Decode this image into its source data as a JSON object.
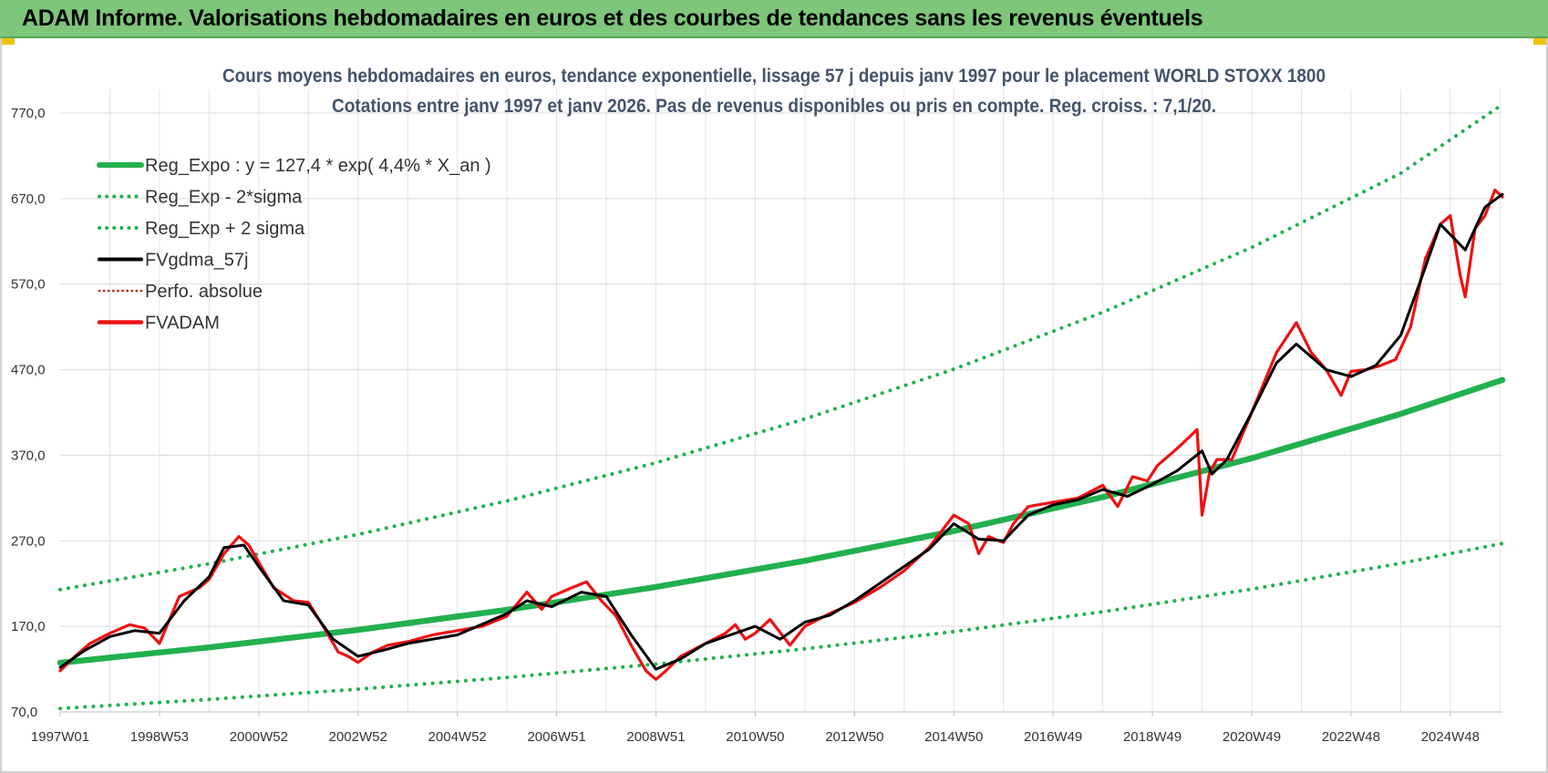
{
  "banner": {
    "title": "ADAM Informe. Valorisations hebdomadaires en euros et des courbes de tendances sans les revenus éventuels"
  },
  "colors": {
    "banner_bg": "#7dc67a",
    "trend": "#22b04f",
    "fv": "#ee1111",
    "gdma": "#000000",
    "title": "#44546a"
  },
  "chart_data": {
    "type": "line",
    "title": "Cours moyens hebdomadaires en euros, tendance exponentielle, lissage 57 j depuis janv 1997 pour le placement WORLD STOXX 1800",
    "subtitle": "Cotations entre janv 1997 et janv 2026. Pas de revenus disponibles ou pris en compte. Reg. croiss. : 7,1/20.",
    "ylim": [
      70,
      770
    ],
    "xlim": [
      1997.0,
      2026.05
    ],
    "y_ticks": [
      70,
      170,
      270,
      370,
      470,
      570,
      670,
      770
    ],
    "y_tick_labels": [
      "70,0",
      "170,0",
      "270,0",
      "370,0",
      "470,0",
      "570,0",
      "670,0",
      "770,0"
    ],
    "x_tick_labels": [
      "1997W01",
      "1998W53",
      "2000W52",
      "2002W52",
      "2004W52",
      "2006W51",
      "2008W51",
      "2010W50",
      "2012W50",
      "2014W50",
      "2016W49",
      "2018W49",
      "2020W49",
      "2022W48",
      "2024W48"
    ],
    "x_tick_years": [
      1997.0,
      1999.0,
      2001.0,
      2003.0,
      2005.0,
      2007.0,
      2009.0,
      2011.0,
      2013.0,
      2015.0,
      2017.0,
      2019.0,
      2021.0,
      2023.0,
      2025.0
    ],
    "grid": true,
    "legend_position": "top-left",
    "legend": [
      {
        "key": "reg_expo",
        "label": "Reg_Expo : y = 127,4 * exp( 4,4% *  X_an )"
      },
      {
        "key": "reg_minus",
        "label": "Reg_Exp - 2*sigma"
      },
      {
        "key": "reg_plus",
        "label": "Reg_Exp + 2 sigma"
      },
      {
        "key": "fvgdma",
        "label": "FVgdma_57j"
      },
      {
        "key": "perfo",
        "label": "Perfo. absolue"
      },
      {
        "key": "fvadam",
        "label": "FVADAM"
      }
    ],
    "series": [
      {
        "name": "Reg_Expo : y = 127,4 * exp( 4,4% *  X_an )",
        "x": [
          1997.0,
          2000.0,
          2003.0,
          2006.0,
          2009.0,
          2012.0,
          2015.0,
          2018.0,
          2021.0,
          2024.0,
          2026.05
        ],
        "y": [
          127.4,
          145.4,
          165.9,
          189.3,
          216.1,
          246.6,
          281.4,
          321.1,
          366.5,
          418.3,
          458.0
        ]
      },
      {
        "name": "Reg_Exp - 2*sigma",
        "x": [
          1997.0,
          2000.0,
          2003.0,
          2006.0,
          2009.0,
          2012.0,
          2015.0,
          2018.0,
          2021.0,
          2024.0,
          2026.05
        ],
        "y": [
          74,
          84.6,
          96.6,
          110.3,
          125.9,
          143.7,
          163.9,
          187.1,
          213.5,
          243.7,
          266.9
        ]
      },
      {
        "name": "Reg_Exp + 2 sigma",
        "x": [
          1997.0,
          2000.0,
          2003.0,
          2006.0,
          2009.0,
          2012.0,
          2015.0,
          2018.0,
          2021.0,
          2024.0,
          2026.05
        ],
        "y": [
          213,
          243.1,
          277.4,
          316.6,
          361.3,
          412.4,
          470.6,
          537.1,
          613.0,
          699.6,
          780.0
        ]
      },
      {
        "name": "FVgdma_57j",
        "x": [
          1997.0,
          1997.5,
          1998.0,
          1998.5,
          1999.0,
          1999.5,
          2000.0,
          2000.3,
          2000.7,
          2001.0,
          2001.5,
          2002.0,
          2002.5,
          2003.0,
          2003.5,
          2004.0,
          2005.0,
          2006.0,
          2006.4,
          2006.9,
          2007.5,
          2008.0,
          2008.5,
          2009.0,
          2009.5,
          2010.0,
          2010.5,
          2011.0,
          2011.5,
          2012.0,
          2012.5,
          2013.0,
          2013.5,
          2014.0,
          2014.5,
          2015.0,
          2015.5,
          2016.0,
          2016.5,
          2017.0,
          2017.5,
          2018.0,
          2018.5,
          2019.0,
          2019.5,
          2020.0,
          2020.2,
          2020.5,
          2021.0,
          2021.5,
          2021.9,
          2022.5,
          2023.0,
          2023.5,
          2024.0,
          2024.5,
          2024.8,
          2025.3,
          2025.7,
          2026.05
        ],
        "y": [
          122,
          142,
          158,
          165,
          162,
          200,
          228,
          262,
          265,
          240,
          200,
          195,
          155,
          135,
          142,
          150,
          160,
          185,
          200,
          193,
          210,
          205,
          160,
          120,
          132,
          150,
          160,
          170,
          155,
          175,
          183,
          200,
          220,
          240,
          260,
          290,
          272,
          270,
          300,
          312,
          318,
          330,
          322,
          336,
          352,
          375,
          348,
          365,
          420,
          478,
          500,
          470,
          462,
          475,
          510,
          590,
          640,
          610,
          660,
          675
        ]
      },
      {
        "name": "FVADAM",
        "x": [
          1997.0,
          1997.3,
          1997.6,
          1998.0,
          1998.4,
          1998.7,
          1999.0,
          1999.4,
          1999.8,
          2000.0,
          2000.3,
          2000.6,
          2000.8,
          2001.0,
          2001.3,
          2001.7,
          2002.0,
          2002.3,
          2002.6,
          2002.8,
          2003.0,
          2003.3,
          2003.6,
          2004.0,
          2004.5,
          2005.0,
          2005.5,
          2006.0,
          2006.4,
          2006.7,
          2006.9,
          2007.3,
          2007.6,
          2007.9,
          2008.2,
          2008.5,
          2008.8,
          2009.0,
          2009.2,
          2009.5,
          2010.0,
          2010.4,
          2010.6,
          2010.8,
          2011.0,
          2011.3,
          2011.7,
          2012.0,
          2012.5,
          2013.0,
          2013.5,
          2014.0,
          2014.5,
          2015.0,
          2015.3,
          2015.5,
          2015.7,
          2016.0,
          2016.2,
          2016.5,
          2017.0,
          2017.5,
          2018.0,
          2018.3,
          2018.6,
          2018.9,
          2019.1,
          2019.5,
          2019.9,
          2020.0,
          2020.15,
          2020.3,
          2020.6,
          2021.0,
          2021.5,
          2021.9,
          2022.2,
          2022.5,
          2022.8,
          2023.0,
          2023.3,
          2023.6,
          2023.9,
          2024.2,
          2024.5,
          2024.8,
          2025.0,
          2025.2,
          2025.3,
          2025.5,
          2025.7,
          2025.9,
          2026.05
        ],
        "y": [
          118,
          135,
          150,
          162,
          172,
          168,
          150,
          205,
          215,
          225,
          255,
          275,
          265,
          245,
          215,
          200,
          198,
          170,
          140,
          135,
          128,
          140,
          148,
          152,
          160,
          165,
          170,
          182,
          210,
          190,
          205,
          215,
          222,
          200,
          182,
          148,
          118,
          108,
          118,
          135,
          150,
          162,
          172,
          155,
          162,
          178,
          148,
          170,
          185,
          198,
          215,
          235,
          262,
          300,
          290,
          255,
          275,
          268,
          290,
          310,
          315,
          320,
          335,
          310,
          345,
          340,
          358,
          378,
          400,
          300,
          350,
          365,
          365,
          420,
          490,
          525,
          490,
          470,
          440,
          468,
          470,
          475,
          482,
          520,
          600,
          640,
          650,
          580,
          555,
          635,
          650,
          680,
          672
        ]
      }
    ]
  }
}
